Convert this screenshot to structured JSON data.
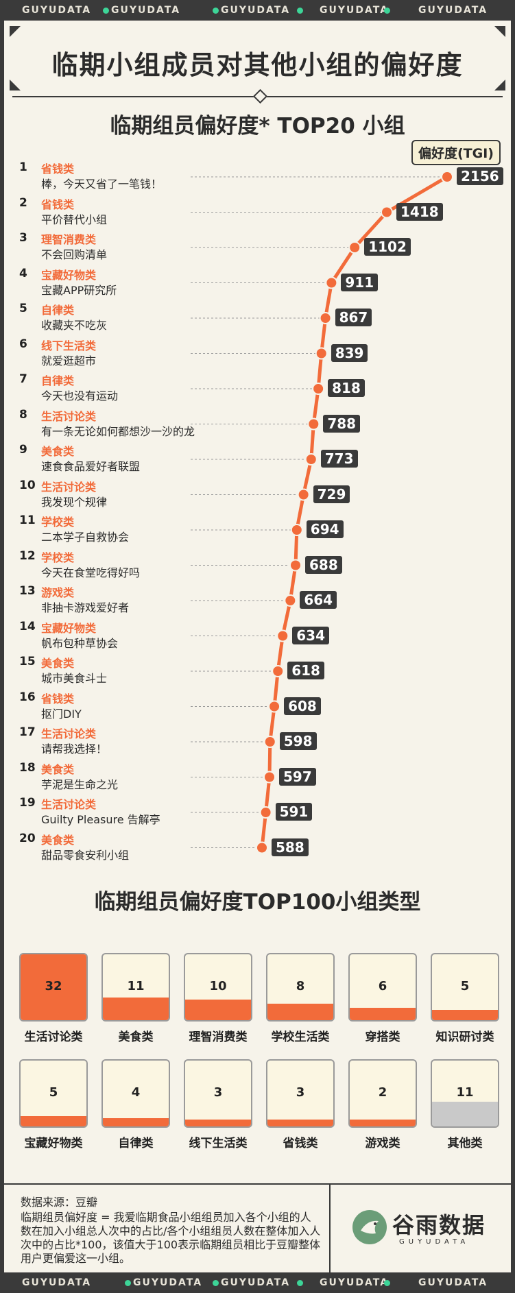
{
  "strip_words": [
    "GUYUDATA",
    "GUYUDATA",
    "GUYUDATA",
    "GUYUDATA",
    "GUYUDATA"
  ],
  "main_title": "临期小组成员对其他小组的偏好度",
  "chart1_title": "临期组员偏好度* TOP20 小组",
  "tgi_label": "偏好度(TGI)",
  "colors": {
    "accent": "#f26b3a",
    "dark": "#3a3a3a",
    "paper": "#f6f3ea",
    "brand_green": "#3dd598",
    "other": "#c9c9c9"
  },
  "chart_data": [
    {
      "type": "line",
      "title": "临期组员偏好度* TOP20 小组",
      "ylabel": "偏好度(TGI)",
      "rows": [
        {
          "rank": "1",
          "category": "省钱类",
          "group": "棒，今天又省了一笔钱！",
          "value": 2156
        },
        {
          "rank": "2",
          "category": "省钱类",
          "group": "平价替代小组",
          "value": 1418
        },
        {
          "rank": "3",
          "category": "理智消费类",
          "group": "不会回购清单",
          "value": 1102
        },
        {
          "rank": "4",
          "category": "宝藏好物类",
          "group": "宝藏APP研究所",
          "value": 911
        },
        {
          "rank": "5",
          "category": "自律类",
          "group": "收藏夹不吃灰",
          "value": 867
        },
        {
          "rank": "6",
          "category": "线下生活类",
          "group": "就爱逛超市",
          "value": 839
        },
        {
          "rank": "7",
          "category": "自律类",
          "group": "今天也没有运动",
          "value": 818
        },
        {
          "rank": "8",
          "category": "生活讨论类",
          "group": "有一条无论如何都想沙一沙的龙",
          "value": 788
        },
        {
          "rank": "9",
          "category": "美食类",
          "group": "速食食品爱好者联盟",
          "value": 773
        },
        {
          "rank": "10",
          "category": "生活讨论类",
          "group": "我发现个规律",
          "value": 729
        },
        {
          "rank": "11",
          "category": "学校类",
          "group": "二本学子自救协会",
          "value": 694
        },
        {
          "rank": "12",
          "category": "学校类",
          "group": "今天在食堂吃得好吗",
          "value": 688
        },
        {
          "rank": "13",
          "category": "游戏类",
          "group": "非抽卡游戏爱好者",
          "value": 664
        },
        {
          "rank": "14",
          "category": "宝藏好物类",
          "group": "帆布包种草协会",
          "value": 634
        },
        {
          "rank": "15",
          "category": "美食类",
          "group": "城市美食斗士",
          "value": 618
        },
        {
          "rank": "16",
          "category": "省钱类",
          "group": "抠门DIY",
          "value": 608
        },
        {
          "rank": "17",
          "category": "生活讨论类",
          "group": "请帮我选择！",
          "value": 598
        },
        {
          "rank": "18",
          "category": "美食类",
          "group": "芋泥是生命之光",
          "value": 597
        },
        {
          "rank": "19",
          "category": "生活讨论类",
          "group": "Guilty Pleasure 告解亭",
          "value": 591
        },
        {
          "rank": "20",
          "category": "美食类",
          "group": "甜品零食安利小组",
          "value": 588
        }
      ]
    },
    {
      "type": "bar",
      "title": "临期组员偏好度TOP100小组类型",
      "categories": [
        "生活讨论类",
        "美食类",
        "理智消费类",
        "学校生活类",
        "穿搭类",
        "知识研讨类",
        "宝藏好物类",
        "自律类",
        "线下生活类",
        "省钱类",
        "游戏类",
        "其他类"
      ],
      "values": [
        32,
        11,
        10,
        8,
        6,
        5,
        5,
        4,
        3,
        3,
        2,
        11
      ],
      "max": 32
    }
  ],
  "footer": {
    "source": "数据来源：豆瓣",
    "note": "临期组员偏好度 = 我爱临期食品小组组员加入各个小组的人数在加入小组总人次中的占比/各个小组组员人数在整体加入人次中的占比*100，该值大于100表示临期组员相比于豆瓣整体用户更偏爱这一小组。",
    "logo_text": "谷雨数据",
    "logo_sub": "GUYUDATA"
  }
}
